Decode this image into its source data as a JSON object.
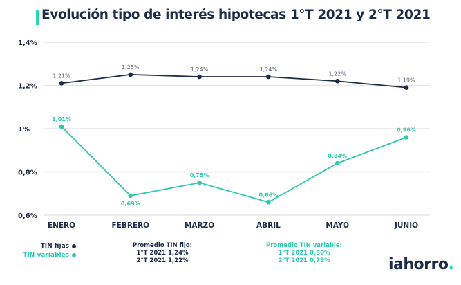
{
  "chart_data": {
    "type": "line",
    "title": "Evolución tipo de interés hipotecas 1°T 2021 y 2°T 2021",
    "categories": [
      "ENERO",
      "FEBRERO",
      "MARZO",
      "ABRIL",
      "MAYO",
      "JUNIO"
    ],
    "ylim": [
      0.6,
      1.4
    ],
    "yticks": [
      0.6,
      0.8,
      1.0,
      1.2,
      1.4
    ],
    "ytick_labels": [
      "0,6%",
      "0,8%",
      "1%",
      "1,2%",
      "1,4%"
    ],
    "grid": true,
    "legend_position": "bottom-left",
    "series": [
      {
        "name": "TIN fijas",
        "color": "#1c2b4a",
        "values": [
          1.21,
          1.25,
          1.24,
          1.24,
          1.22,
          1.19
        ],
        "labels": [
          "1,21%",
          "1,25%",
          "1,24%",
          "1,24%",
          "1,22%",
          "1,19%"
        ]
      },
      {
        "name": "TIN variables",
        "color": "#2cc9ad",
        "values": [
          1.01,
          0.69,
          0.75,
          0.66,
          0.84,
          0.96
        ],
        "labels": [
          "1,01%",
          "0,69%",
          "0,75%",
          "0,66%",
          "0,84%",
          "0,96%"
        ]
      }
    ]
  },
  "averages": {
    "fijo": {
      "title": "Promedio TIN fijo:",
      "q1": "1°T 2021 1,24%",
      "q2": "2°T 2021 1,22%"
    },
    "variable": {
      "title": "Promedio TIN variable:",
      "q1": "1°T 2021 0,80%",
      "q2": "2°T 2021 0,79%"
    }
  },
  "logo": {
    "text": "iahorro",
    "dot": "."
  }
}
